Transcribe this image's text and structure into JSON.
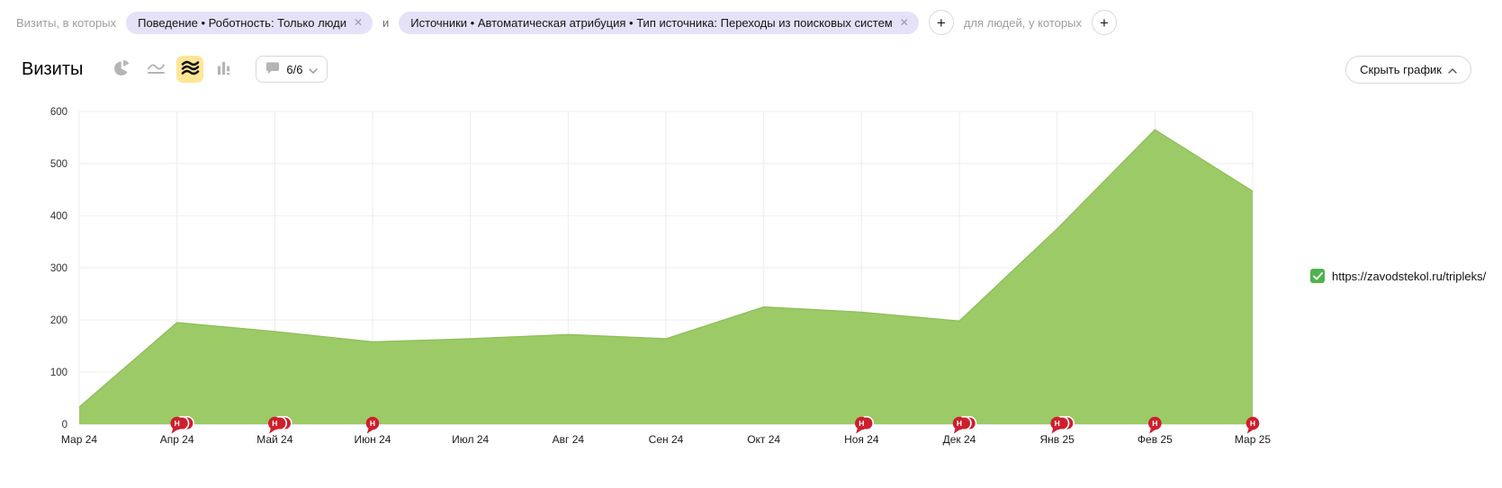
{
  "filter_bar": {
    "prefix_label": "Визиты, в которых",
    "chips": [
      {
        "label": "Поведение • Роботность: Только люди"
      },
      {
        "label": "Источники • Автоматическая атрибуция • Тип источника: Переходы из поисковых систем"
      }
    ],
    "remove_icon": "✕",
    "conjunction": "и",
    "add_icon": "+",
    "people_label": "для людей, у которых"
  },
  "chart_header": {
    "title": "Визиты",
    "chart_types": [
      "pie-chart",
      "line-chart",
      "area-chart",
      "bar-chart"
    ],
    "selected_chart_type": "area-chart",
    "comments_count": "6/6",
    "hide_chart_label": "Скрыть график"
  },
  "legend": {
    "items": [
      {
        "label": "https://zavodstekol.ru/tripleks/",
        "checked": true,
        "color": "#4eb34f"
      }
    ]
  },
  "chart_data": {
    "type": "area",
    "title": "Визиты",
    "categories": [
      "Мар 24",
      "Апр 24",
      "Май 24",
      "Июн 24",
      "Июл 24",
      "Авг 24",
      "Сен 24",
      "Окт 24",
      "Ноя 24",
      "Дек 24",
      "Янв 25",
      "Фев 25",
      "Мар 25"
    ],
    "series": [
      {
        "name": "https://zavodstekol.ru/tripleks/",
        "values": [
          33,
          195,
          178,
          158,
          164,
          172,
          164,
          225,
          215,
          198,
          375,
          565,
          447
        ]
      }
    ],
    "xlabel": "",
    "ylabel": "",
    "ylim": [
      0,
      600
    ],
    "yticks": [
      0,
      100,
      200,
      300,
      400,
      500,
      600
    ],
    "grid": true,
    "legend_position": "right",
    "area_color": "#9cca66",
    "area_edge_color": "#8ebd57",
    "marker_color": "#ce1f2d",
    "markers": [
      {
        "category": "Апр 24",
        "label": "Н",
        "count": 3
      },
      {
        "category": "Май 24",
        "label": "Н",
        "count": 3
      },
      {
        "category": "Июн 24",
        "label": "Н",
        "count": 1
      },
      {
        "category": "Ноя 24",
        "label": "Н",
        "count": 2
      },
      {
        "category": "Дек 24",
        "label": "Н",
        "count": 3
      },
      {
        "category": "Янв 25",
        "label": "Н",
        "count": 3
      },
      {
        "category": "Фев 25",
        "label": "Н",
        "count": 1
      },
      {
        "category": "Мар 25",
        "label": "Н",
        "count": 1
      }
    ]
  },
  "colors": {
    "chip_bg": "#e4e1f9",
    "selected_icon_bg": "#ffe596",
    "gridline": "#ececec",
    "baseline": "#d7d7d7",
    "icon_gray": "#b5b5b5"
  }
}
